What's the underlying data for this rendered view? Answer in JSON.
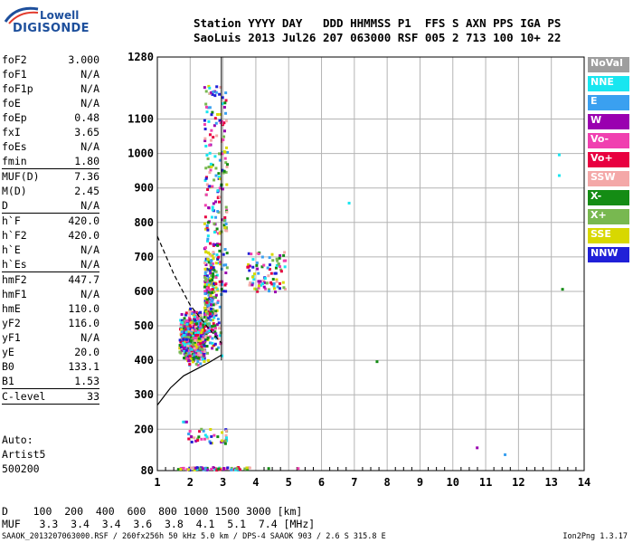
{
  "logo": {
    "line1": "Lowell",
    "line2": "DIGISONDE"
  },
  "header": {
    "line1": "Station YYYY DAY   DDD HHMMSS P1  FFS S AXN PPS IGA PS",
    "line2": "SaoLuis 2013 Jul26 207 063000 RSF 005 2 713 100 10+ 22"
  },
  "params": [
    {
      "name": "foF2",
      "value": "3.000"
    },
    {
      "name": "foF1",
      "value": "N/A"
    },
    {
      "name": "foF1p",
      "value": "N/A"
    },
    {
      "name": "foE",
      "value": "N/A"
    },
    {
      "name": "foEp",
      "value": "0.48"
    },
    {
      "name": "fxI",
      "value": "3.65"
    },
    {
      "name": "foEs",
      "value": "N/A"
    },
    {
      "name": "fmin",
      "value": "1.80"
    },
    {
      "sep": true
    },
    {
      "name": "MUF(D)",
      "value": "7.36"
    },
    {
      "name": "M(D)",
      "value": "2.45"
    },
    {
      "name": "D",
      "value": "N/A"
    },
    {
      "sep": true
    },
    {
      "name": "h`F",
      "value": "420.0"
    },
    {
      "name": "h`F2",
      "value": "420.0"
    },
    {
      "name": "h`E",
      "value": "N/A"
    },
    {
      "name": "h`Es",
      "value": "N/A"
    },
    {
      "sep": true
    },
    {
      "name": "hmF2",
      "value": "447.7"
    },
    {
      "name": "hmF1",
      "value": "N/A"
    },
    {
      "name": "hmE",
      "value": "110.0"
    },
    {
      "name": "yF2",
      "value": "116.0"
    },
    {
      "name": "yF1",
      "value": "N/A"
    },
    {
      "name": "yE",
      "value": "20.0"
    },
    {
      "name": "B0",
      "value": "133.1"
    },
    {
      "name": "B1",
      "value": "1.53"
    },
    {
      "sep": true
    },
    {
      "name": "C-level",
      "value": "33"
    },
    {
      "sep": true
    }
  ],
  "auto": {
    "line1": "Auto:",
    "line2": "Artist5",
    "line3": "500200"
  },
  "legend": [
    {
      "label": "NoVal",
      "color": "#9e9e9e"
    },
    {
      "label": "NNE",
      "color": "#18e6f0"
    },
    {
      "label": "E",
      "color": "#3aa0f0"
    },
    {
      "label": "W",
      "color": "#9a00b0"
    },
    {
      "label": "Vo-",
      "color": "#f040b0"
    },
    {
      "label": "Vo+",
      "color": "#e80040"
    },
    {
      "label": "SSW",
      "color": "#f4a8a8"
    },
    {
      "label": "X-",
      "color": "#148c14"
    },
    {
      "label": "X+",
      "color": "#78b850"
    },
    {
      "label": "SSE",
      "color": "#d8d800"
    },
    {
      "label": "NNW",
      "color": "#2020d8"
    }
  ],
  "bottom": {
    "d_line": "D    100  200  400  600  800 1000 1500 3000 [km]",
    "muf_line": "MUF   3.3  3.4  3.4  3.6  3.8  4.1  5.1  7.4 [MHz]"
  },
  "footer": {
    "text": "SAAOK_2013207063000.RSF / 260fx256h 50 kHz 5.0 km / DPS-4 SAAOK 903 / 2.6 S 315.8 E",
    "version": "Ion2Png 1.3.17"
  },
  "chart_data": {
    "type": "scatter",
    "xlim": [
      1,
      14
    ],
    "ylim": [
      80,
      1280
    ],
    "x_ticks": [
      "1",
      "2",
      "3",
      "4",
      "5",
      "6",
      "7",
      "8",
      "9",
      "10",
      "11",
      "12",
      "13",
      "14"
    ],
    "y_ticks": [
      "80",
      "200",
      "300",
      "400",
      "500",
      "600",
      "700",
      "800",
      "900",
      "1000",
      "1100",
      "1280"
    ],
    "grid": true,
    "isolated_points": [
      {
        "x": 6.8,
        "y": 860,
        "series": "NNE"
      },
      {
        "x": 13.2,
        "y": 1000,
        "series": "NNE"
      },
      {
        "x": 13.2,
        "y": 940,
        "series": "NNE"
      },
      {
        "x": 13.3,
        "y": 610,
        "series": "X-"
      },
      {
        "x": 7.65,
        "y": 400,
        "series": "X-"
      },
      {
        "x": 10.7,
        "y": 150,
        "series": "W"
      },
      {
        "x": 11.55,
        "y": 130,
        "series": "E"
      },
      {
        "x": 4.35,
        "y": 90,
        "series": "X-"
      },
      {
        "x": 5.25,
        "y": 90,
        "series": "Vo-"
      }
    ],
    "profile_solid": [
      [
        1,
        270
      ],
      [
        1.4,
        320
      ],
      [
        1.8,
        355
      ],
      [
        2.2,
        375
      ],
      [
        2.6,
        395
      ],
      [
        2.95,
        415
      ]
    ],
    "profile_dashed": [
      [
        1,
        760
      ],
      [
        1.5,
        650
      ],
      [
        2.0,
        560
      ],
      [
        2.5,
        500
      ],
      [
        2.95,
        450
      ]
    ],
    "vertical_marker_x": 2.95
  }
}
